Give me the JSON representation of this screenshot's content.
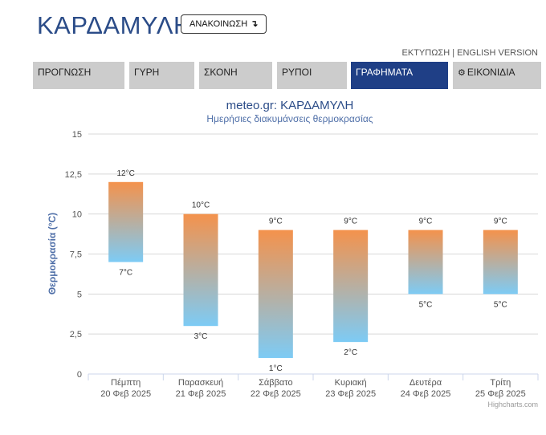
{
  "header": {
    "site_title": "ΚΑΡΔΑΜΥΛΗ",
    "announce_label": "ΑΝΑΚΟΙΝΩΣΗ",
    "announce_icon": "↴",
    "print_link": "ΕΚΤΥΠΩΣΗ",
    "separator": " | ",
    "english_link": "ENGLISH VERSION"
  },
  "tabs": [
    {
      "label": "ΠΡΟΓΝΩΣΗ"
    },
    {
      "label": "ΓΥΡΗ"
    },
    {
      "label": "ΣΚΟΝΗ"
    },
    {
      "label": "ΡΥΠΟΙ"
    },
    {
      "label": "ΓΡΑΦΗΜΑΤΑ",
      "active": true
    },
    {
      "label": "ΕΙΚΟΝΙΔΙΑ",
      "icon": "gear-icon"
    }
  ],
  "chart_data": {
    "type": "bar",
    "title": "meteo.gr: ΚΑΡΔΑΜΥΛΗ",
    "subtitle": "Ημερήσιες διακυμάνσεις θερμοκρασίας",
    "ylabel": "Θερμοκρασία (°C)",
    "xlabel": "",
    "ylim": [
      0,
      15
    ],
    "yticks": [
      "0",
      "2,5",
      "5",
      "7,5",
      "10",
      "12,5",
      "15"
    ],
    "ytick_values": [
      0,
      2.5,
      5,
      7.5,
      10,
      12.5,
      15
    ],
    "grid": true,
    "categories": [
      {
        "day": "Πέμπτη",
        "date": "20 Φεβ 2025"
      },
      {
        "day": "Παρασκευή",
        "date": "21 Φεβ 2025"
      },
      {
        "day": "Σάββατο",
        "date": "22 Φεβ 2025"
      },
      {
        "day": "Κυριακή",
        "date": "23 Φεβ 2025"
      },
      {
        "day": "Δευτέρα",
        "date": "24 Φεβ 2025"
      },
      {
        "day": "Τρίτη",
        "date": "25 Φεβ 2025"
      }
    ],
    "series": [
      {
        "low": 7,
        "high": 12,
        "low_label": "7°C",
        "high_label": "12°C"
      },
      {
        "low": 3,
        "high": 10,
        "low_label": "3°C",
        "high_label": "10°C"
      },
      {
        "low": 1,
        "high": 9,
        "low_label": "1°C",
        "high_label": "9°C"
      },
      {
        "low": 2,
        "high": 9,
        "low_label": "2°C",
        "high_label": "9°C"
      },
      {
        "low": 5,
        "high": 9,
        "low_label": "5°C",
        "high_label": "9°C"
      },
      {
        "low": 5,
        "high": 9,
        "low_label": "5°C",
        "high_label": "9°C"
      }
    ],
    "colors": {
      "top": "#f4924c",
      "bottom": "#7dcbf5",
      "title": "#2b4c88",
      "subtitle": "#4f6fa8",
      "ylabel": "#4f6fa8"
    },
    "credits": "Highcharts.com"
  }
}
